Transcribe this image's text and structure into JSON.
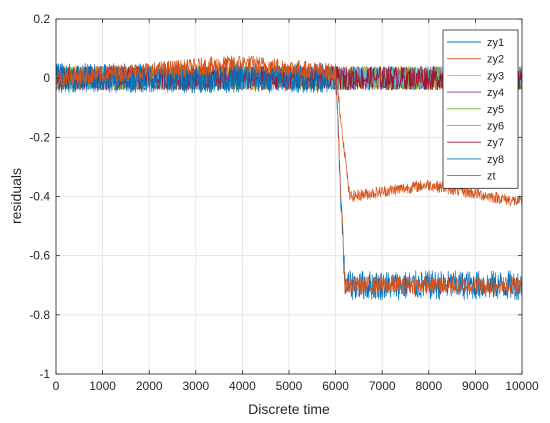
{
  "chart_data": {
    "type": "line",
    "title": "",
    "xlabel": "Discrete time",
    "ylabel": "residuals",
    "xlim": [
      0,
      10000
    ],
    "ylim": [
      -1,
      0.2
    ],
    "xticks": [
      0,
      1000,
      2000,
      3000,
      4000,
      5000,
      6000,
      7000,
      8000,
      9000,
      10000
    ],
    "yticks": [
      0.2,
      0,
      -0.2,
      -0.4,
      -0.6,
      -0.8,
      -1
    ],
    "xtick_labels": [
      "0",
      "1000",
      "2000",
      "3000",
      "4000",
      "5000",
      "6000",
      "7000",
      "8000",
      "9000",
      "10000"
    ],
    "ytick_labels": [
      "0.2",
      "0",
      "-0.2",
      "-0.4",
      "-0.6",
      "-0.8",
      "-1"
    ],
    "grid": true,
    "legend_position": "top-right",
    "series": [
      {
        "name": "zy1",
        "color": "#0072BD",
        "points": [
          [
            0,
            0
          ],
          [
            6000,
            0
          ],
          [
            6200,
            0
          ],
          [
            10000,
            0
          ]
        ],
        "noise": 0.04
      },
      {
        "name": "zy2",
        "color": "#D95319",
        "points": [
          [
            0,
            0
          ],
          [
            6000,
            0
          ],
          [
            6200,
            0
          ],
          [
            10000,
            0
          ]
        ],
        "noise": 0.04
      },
      {
        "name": "zy3",
        "color": "#EDB120",
        "points": [
          [
            0,
            0
          ],
          [
            6000,
            0
          ],
          [
            6200,
            0
          ],
          [
            10000,
            0
          ]
        ],
        "noise": 0.04
      },
      {
        "name": "zy4",
        "color": "#7E2F8E",
        "points": [
          [
            0,
            0
          ],
          [
            6000,
            0
          ],
          [
            6200,
            0
          ],
          [
            10000,
            0
          ]
        ],
        "noise": 0.04
      },
      {
        "name": "zy5",
        "color": "#77AC30",
        "points": [
          [
            0,
            0
          ],
          [
            6000,
            0
          ],
          [
            6200,
            0
          ],
          [
            10000,
            0
          ]
        ],
        "noise": 0.04
      },
      {
        "name": "zy6",
        "color": "#4DBEEE",
        "points": [
          [
            0,
            0
          ],
          [
            6000,
            0
          ],
          [
            6200,
            0
          ],
          [
            10000,
            0
          ]
        ],
        "noise": 0.04
      },
      {
        "name": "zy7",
        "color": "#A2142F",
        "points": [
          [
            0,
            0
          ],
          [
            6000,
            0
          ],
          [
            6200,
            0
          ],
          [
            10000,
            0
          ]
        ],
        "noise": 0.04
      },
      {
        "name": "zy8",
        "color": "#0072BD",
        "points": [
          [
            0,
            0
          ],
          [
            6000,
            0
          ],
          [
            6200,
            -0.7
          ],
          [
            10000,
            -0.7
          ]
        ],
        "noise": 0.05
      },
      {
        "name": "zt",
        "color": "#D95319",
        "points": [
          [
            0,
            0
          ],
          [
            4000,
            0.05
          ],
          [
            6000,
            0.02
          ],
          [
            6200,
            -0.7
          ],
          [
            10000,
            -0.7
          ]
        ],
        "noise": 0.03
      },
      {
        "name": "",
        "color": "#D95319",
        "points": [
          [
            6000,
            0.02
          ],
          [
            6300,
            -0.4
          ],
          [
            8000,
            -0.36
          ],
          [
            10000,
            -0.42
          ]
        ],
        "noise": 0.02
      }
    ]
  }
}
